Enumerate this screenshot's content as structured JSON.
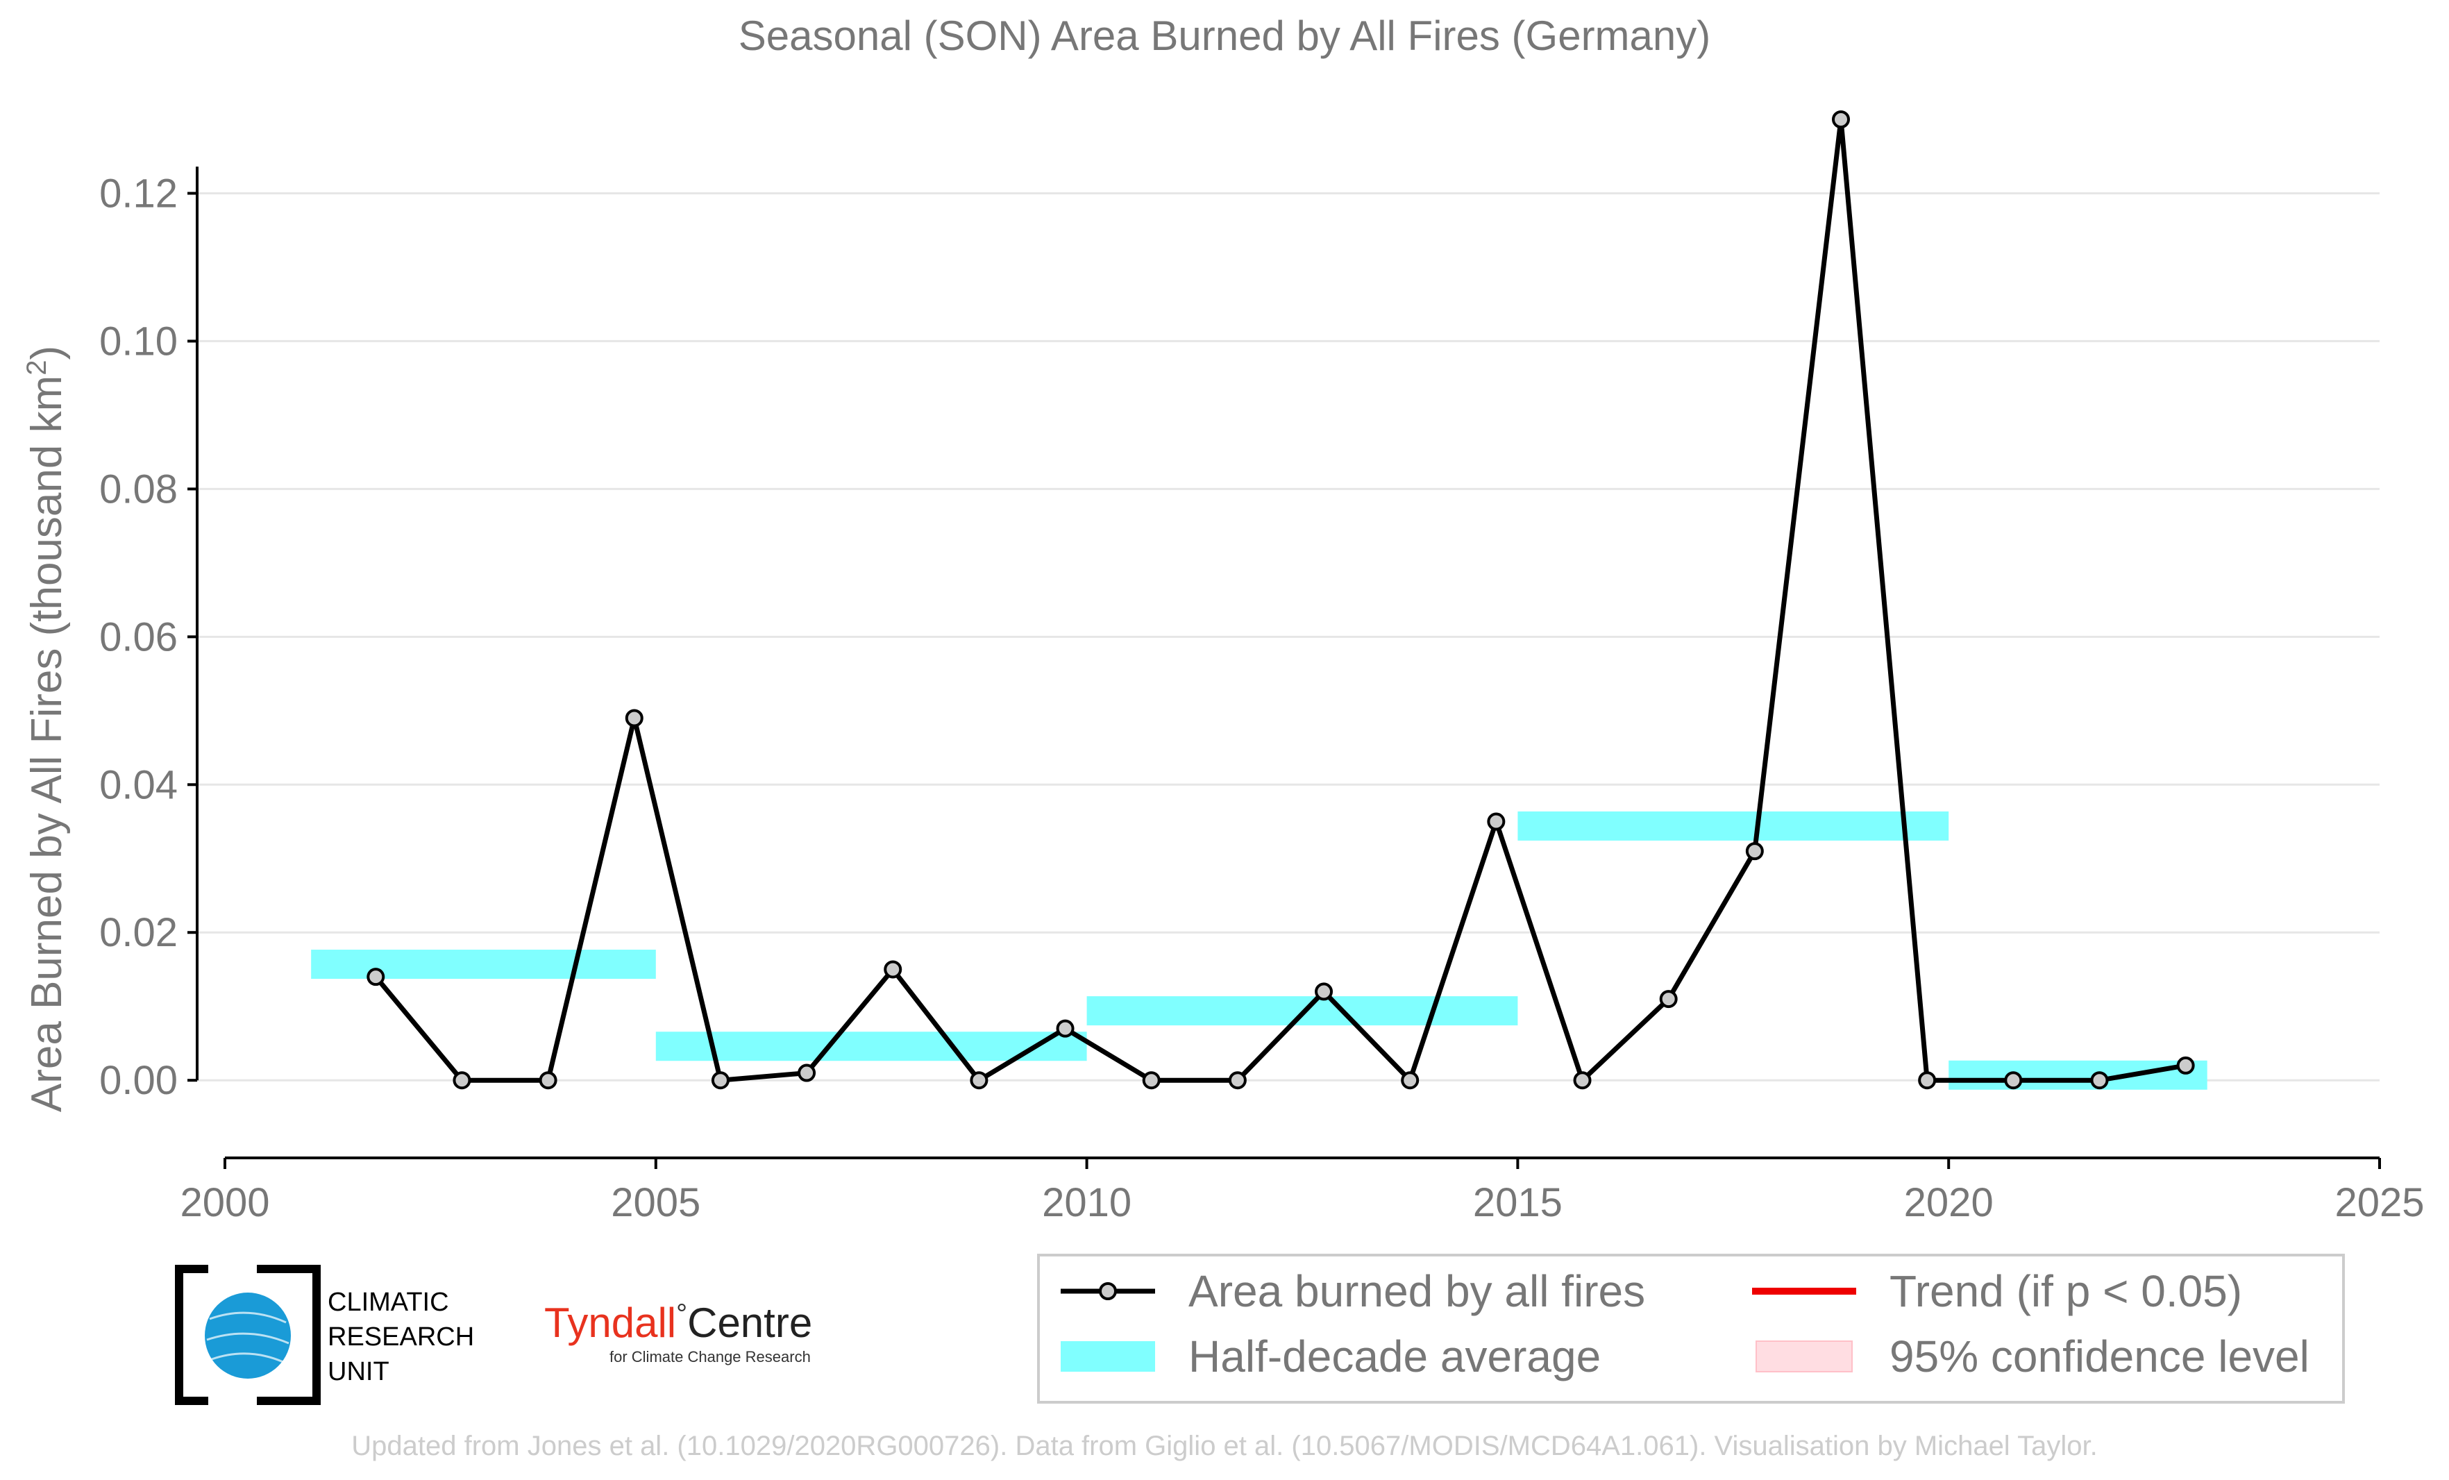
{
  "chart_data": {
    "type": "line",
    "title": "Seasonal (SON) Area Burned by All Fires (Germany)",
    "xlabel": "",
    "ylabel": "Area Burned by All Fires (thousand km",
    "ylabel_sup": "2",
    "ylabel_end": ")",
    "xlim": [
      2000,
      2025
    ],
    "ylim": [
      -0.0105,
      0.13
    ],
    "x_ticks": [
      2000,
      2005,
      2010,
      2015,
      2020,
      2025
    ],
    "x_tick_labels": [
      "2000",
      "2005",
      "2010",
      "2015",
      "2020",
      "2025"
    ],
    "y_ticks": [
      0.0,
      0.02,
      0.04,
      0.06,
      0.08,
      0.1,
      0.12
    ],
    "y_tick_labels": [
      "0.00",
      "0.02",
      "0.04",
      "0.06",
      "0.08",
      "0.10",
      "0.12"
    ],
    "grid": true,
    "series": [
      {
        "name": "Area burned by all fires",
        "color": "#000000",
        "marker_fill": "#cccccc",
        "x": [
          2001.75,
          2002.75,
          2003.75,
          2004.75,
          2005.75,
          2006.75,
          2007.75,
          2008.75,
          2009.75,
          2010.75,
          2011.75,
          2012.75,
          2013.75,
          2014.75,
          2015.75,
          2016.75,
          2017.75,
          2018.75,
          2019.75,
          2020.75,
          2021.75,
          2022.75
        ],
        "y": [
          0.014,
          0.0,
          0.0,
          0.049,
          0.0,
          0.001,
          0.015,
          0.0,
          0.007,
          0.0,
          0.0,
          0.012,
          0.0,
          0.035,
          0.0,
          0.011,
          0.031,
          0.13,
          0.0,
          0.0,
          0.0,
          0.002
        ]
      }
    ],
    "half_decade_averages": {
      "name": "Half-decade average",
      "color": "#80ffff",
      "segments": [
        {
          "x0": 2001.0,
          "x1": 2005.0,
          "y": 0.0157
        },
        {
          "x0": 2005.0,
          "x1": 2010.0,
          "y": 0.0046
        },
        {
          "x0": 2010.0,
          "x1": 2015.0,
          "y": 0.0094
        },
        {
          "x0": 2015.0,
          "x1": 2020.0,
          "y": 0.0344
        },
        {
          "x0": 2020.0,
          "x1": 2023.0,
          "y": 0.0007
        }
      ]
    },
    "legend": {
      "placement": "bottom-right",
      "entries": [
        {
          "label": "Area burned by all fires",
          "kind": "line-marker",
          "color": "#000000"
        },
        {
          "label": "Trend (if p < 0.05)",
          "kind": "line",
          "color": "#ee0000"
        },
        {
          "label": "Half-decade average",
          "kind": "patch",
          "color": "#80ffff"
        },
        {
          "label": "95% confidence level",
          "kind": "patch",
          "color": "#ffdde2"
        }
      ]
    }
  },
  "logos": {
    "cru_line1": "CLIMATIC",
    "cru_line2": "RESEARCH",
    "cru_line3": "UNIT",
    "cru_accent": "#1a9bd7",
    "tyndall_main": "Tyndall",
    "tyndall_degree": "°",
    "tyndall_centre": "Centre",
    "tyndall_sub": "for Climate Change Research",
    "tyndall_red": "#e8321e"
  },
  "footer": {
    "credit": "Updated from Jones et al. (10.1029/2020RG000726). Data from Giglio et al. (10.5067/MODIS/MCD64A1.061). Visualisation by Michael Taylor."
  }
}
